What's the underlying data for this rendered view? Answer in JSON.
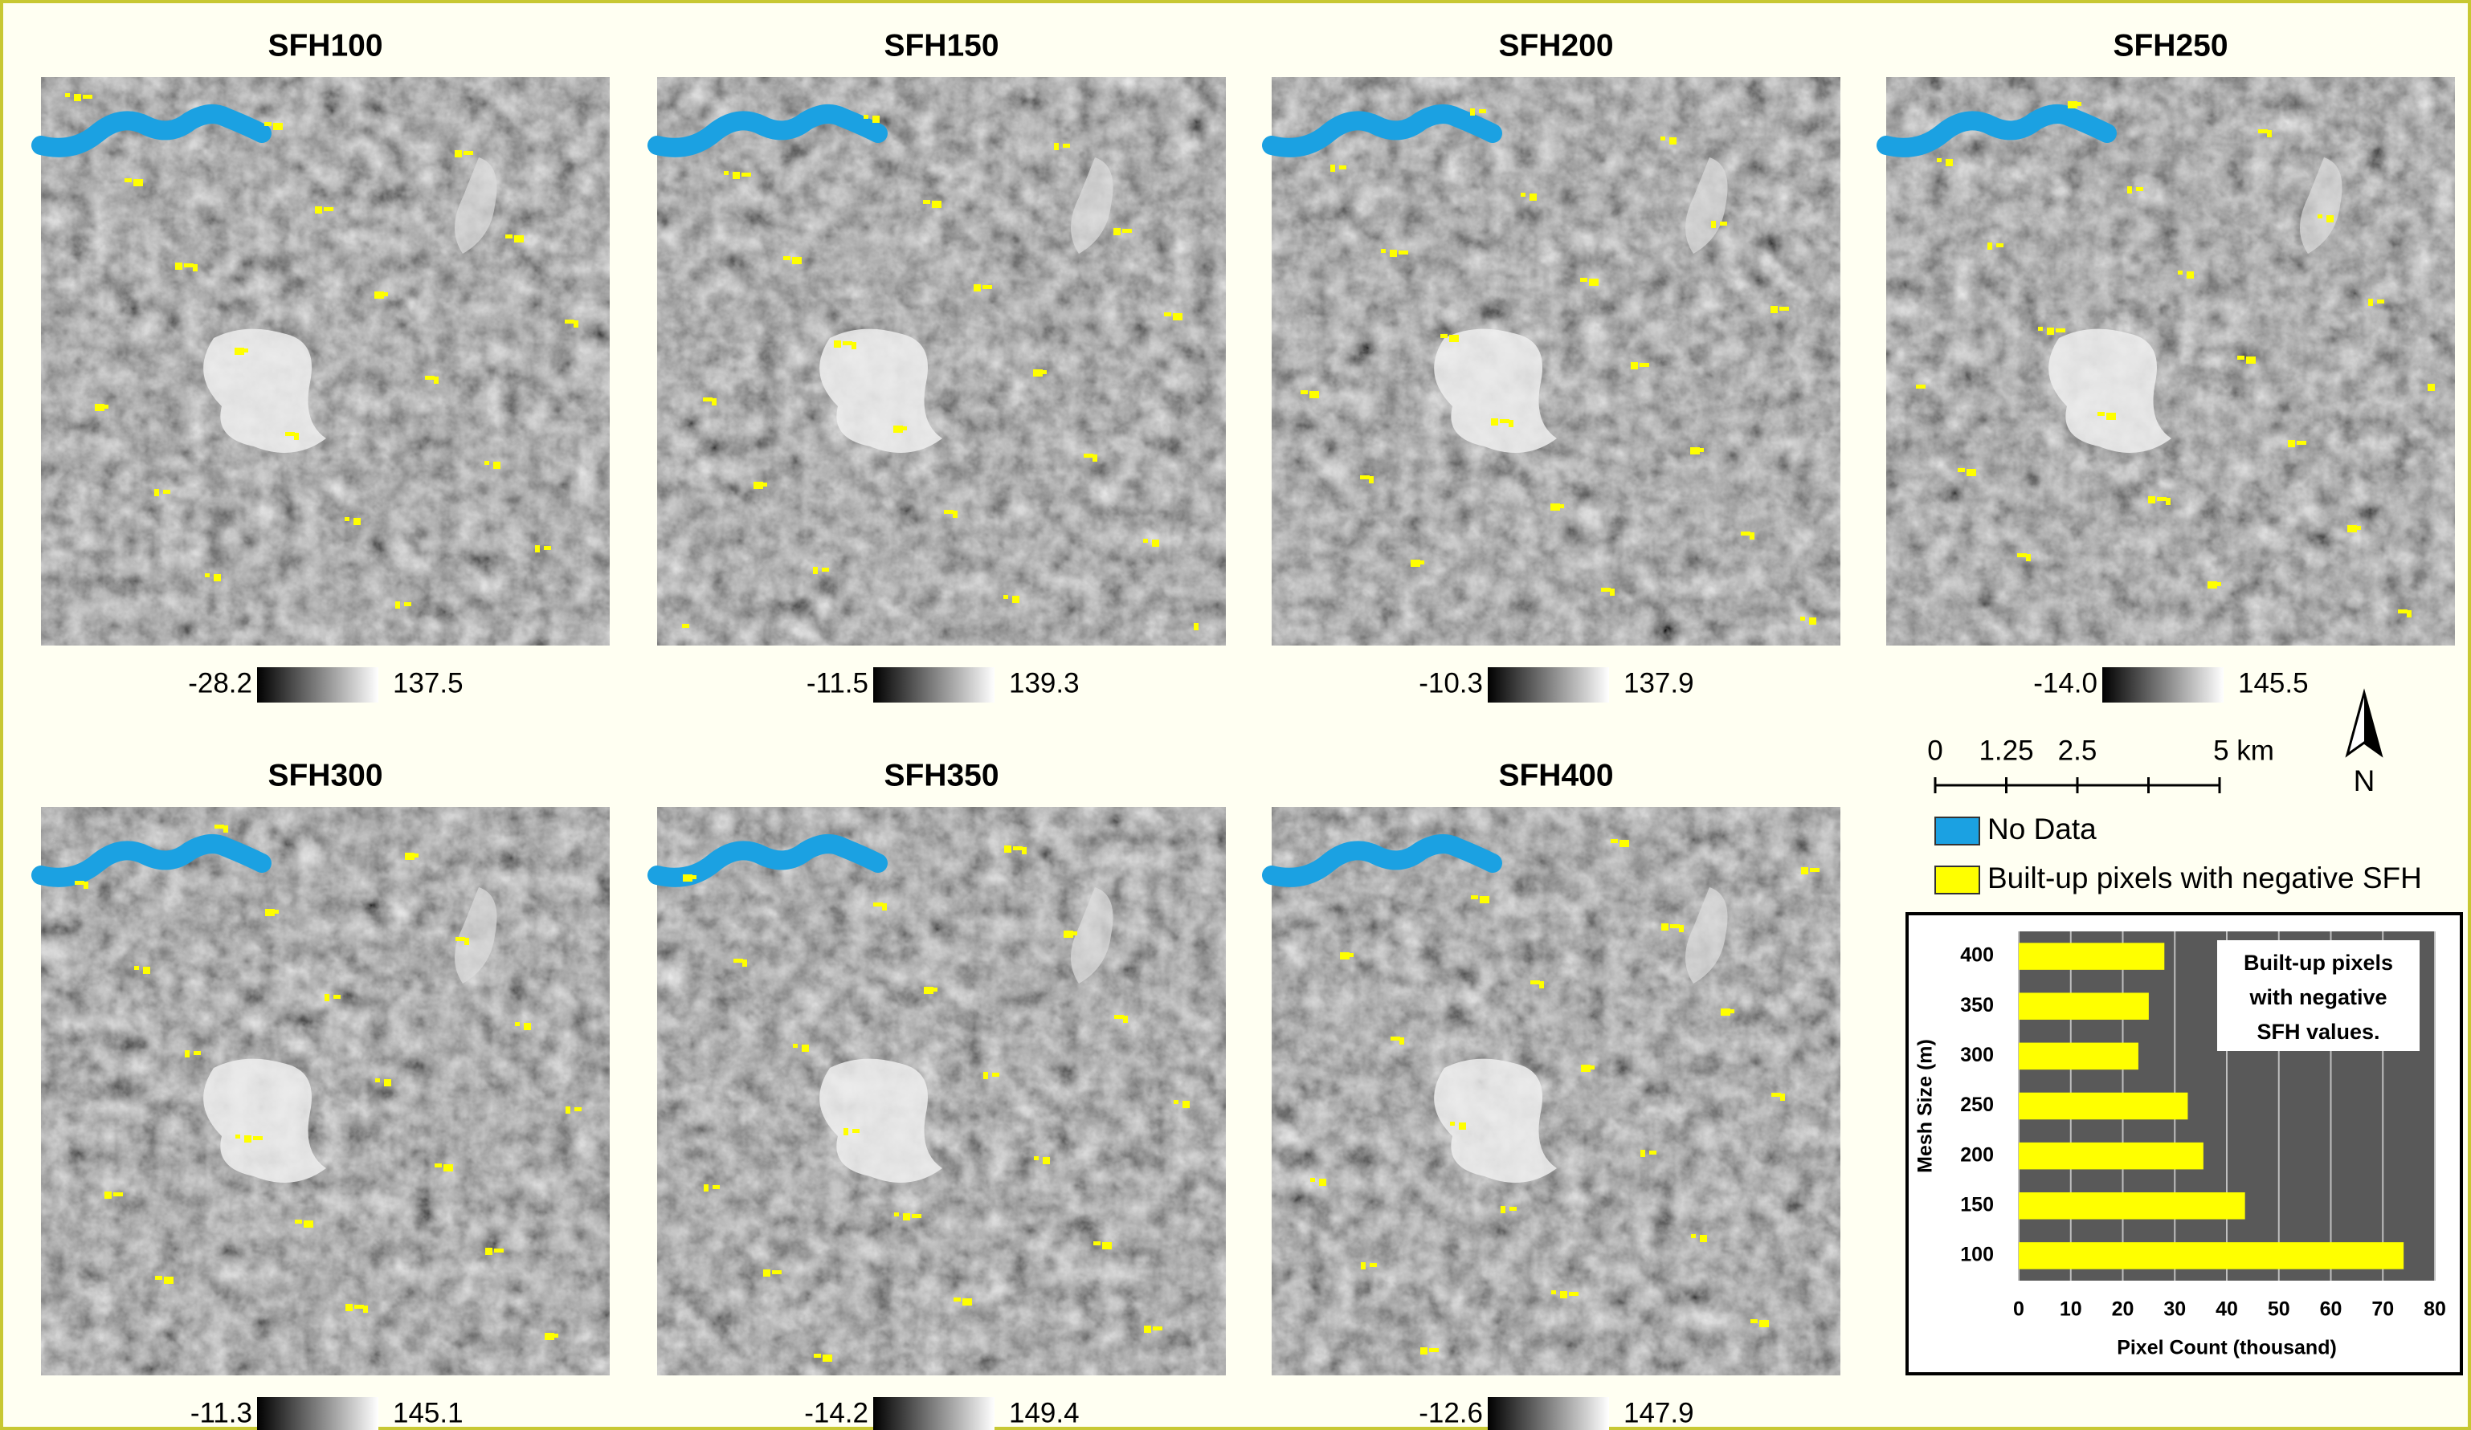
{
  "panels": [
    {
      "title": "SFH100",
      "min": "-28.2",
      "max": "137.5"
    },
    {
      "title": "SFH150",
      "min": "-11.5",
      "max": "139.3"
    },
    {
      "title": "SFH200",
      "min": "-10.3",
      "max": "137.9"
    },
    {
      "title": "SFH250",
      "min": "-14.0",
      "max": "145.5"
    },
    {
      "title": "SFH300",
      "min": "-11.3",
      "max": "145.1"
    },
    {
      "title": "SFH350",
      "min": "-14.2",
      "max": "149.4"
    },
    {
      "title": "SFH400",
      "min": "-12.6",
      "max": "147.9"
    }
  ],
  "scale_bar": {
    "ticks": [
      {
        "value": 0,
        "label": "0"
      },
      {
        "value": 1.25,
        "label": "1.25"
      },
      {
        "value": 2.5,
        "label": "2.5"
      },
      {
        "value": 5,
        "label": "5 km"
      }
    ]
  },
  "north": "N",
  "legend": [
    {
      "label": "No Data",
      "color": "#1ba1e2"
    },
    {
      "label": "Built-up pixels with negative SFH",
      "color": "#ffff00"
    }
  ],
  "chart_data": {
    "type": "hbar",
    "annotation": [
      "Built-up pixels",
      "with negative",
      "SFH values."
    ],
    "x_label": "Pixel Count (thousand)",
    "y_label": "Mesh Size (m)",
    "categories": [
      "400",
      "350",
      "300",
      "250",
      "200",
      "150",
      "100"
    ],
    "values": [
      28,
      25,
      23,
      32.5,
      35.5,
      43.5,
      74
    ],
    "color": "#ffff00",
    "xlim": [
      0,
      80
    ],
    "xticks": [
      0,
      10,
      20,
      30,
      40,
      50,
      60,
      70,
      80
    ],
    "grid": true
  }
}
